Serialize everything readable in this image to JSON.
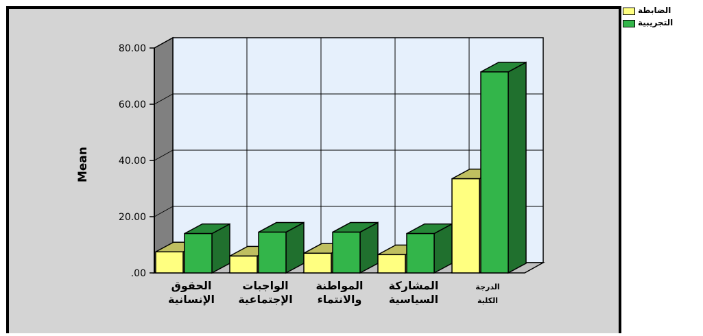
{
  "chart_data": {
    "type": "bar",
    "style": "3d-clustered",
    "categories": [
      [
        "الحقوق",
        "الإنسانية"
      ],
      [
        "الواجبات",
        "الإجتماعية"
      ],
      [
        "المواطنة",
        "والانتماء"
      ],
      [
        "المشاركة",
        "السياسية"
      ],
      [
        "الدرجة",
        "الكلية"
      ]
    ],
    "series": [
      {
        "name": "الضابطة",
        "values": [
          7.5,
          6.0,
          7.0,
          6.5,
          33.5
        ],
        "color": "#ffff80"
      },
      {
        "name": "التجريبية",
        "values": [
          14.0,
          14.5,
          14.5,
          14.0,
          71.5
        ],
        "color": "#33b54a"
      }
    ],
    "ylabel": "Mean",
    "ylim": [
      0,
      80
    ],
    "yticks": [
      ".00",
      "20.00",
      "40.00",
      "60.00",
      "80.00"
    ],
    "ytick_values": [
      0,
      20,
      40,
      60,
      80
    ],
    "grid": true,
    "legend": "top-right",
    "colors": {
      "frame_background": "#d4d4d4",
      "plot_background": "#e6f0fc",
      "side_wall": "#808080",
      "floor": "#c0c0c0"
    }
  }
}
